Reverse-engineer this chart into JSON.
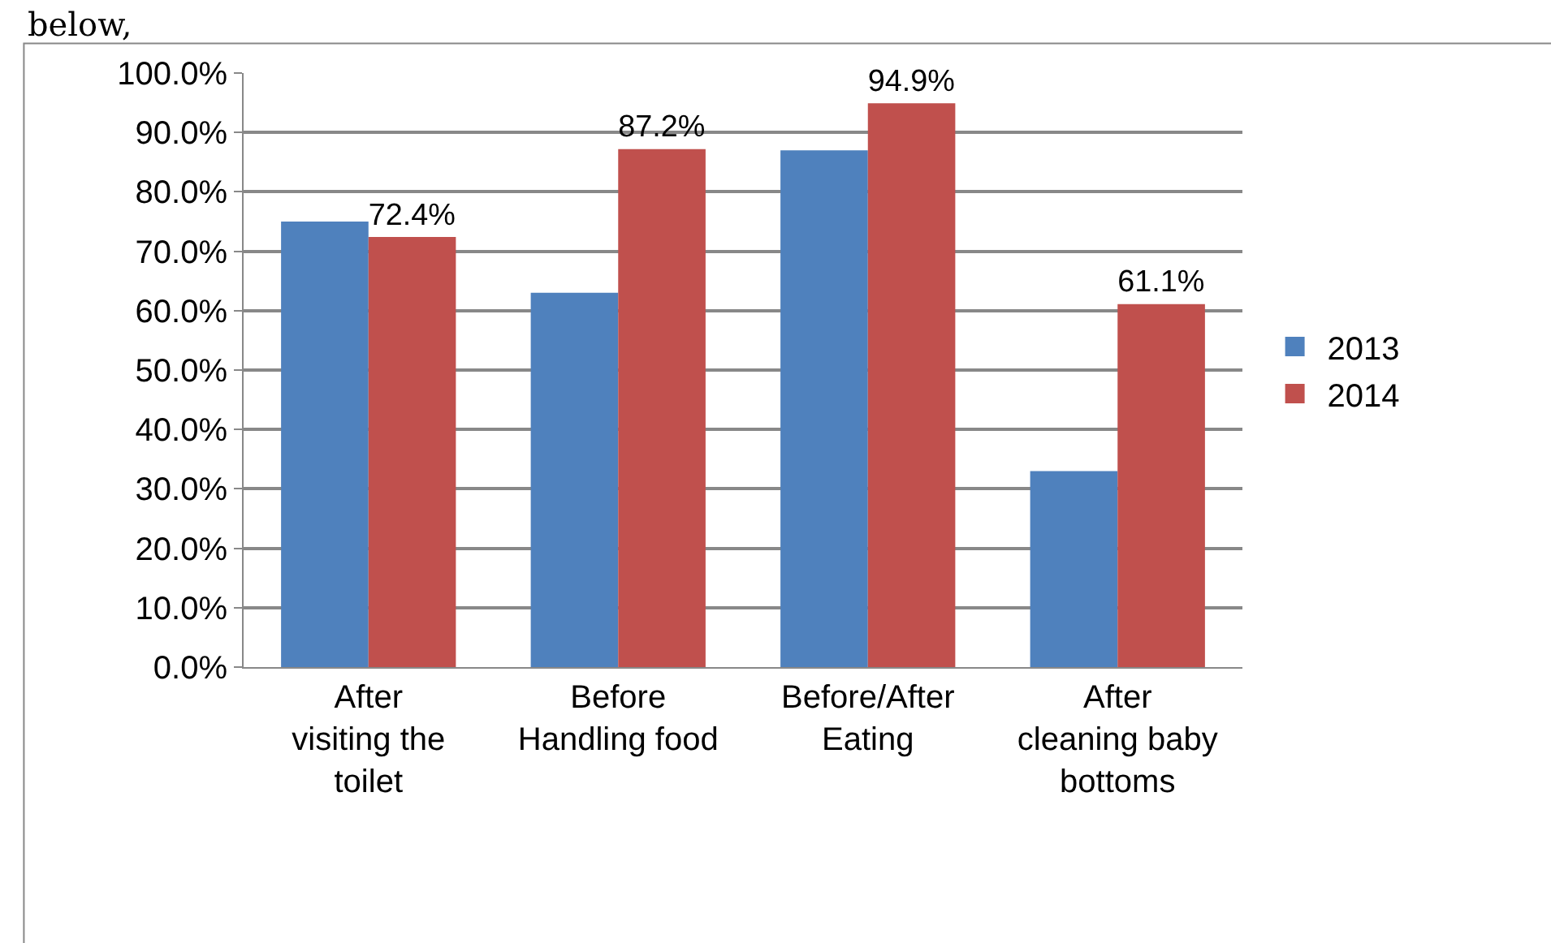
{
  "chart_data": {
    "type": "bar",
    "categories": [
      "After visiting the toilet",
      "Before Handling food",
      "Before/After Eating",
      "After cleaning baby bottoms"
    ],
    "series": [
      {
        "name": "2013",
        "color": "#4f81bd",
        "values": [
          75,
          63,
          87,
          33
        ]
      },
      {
        "name": "2014",
        "color": "#c0504d",
        "values": [
          72.4,
          87.2,
          94.9,
          61.1
        ],
        "value_labels": [
          "72.4%",
          "87.2%",
          "94.9%",
          "61.1%"
        ]
      }
    ],
    "ylim": [
      0,
      100
    ],
    "yticks": [
      {
        "value": 0,
        "label": "0.0%"
      },
      {
        "value": 10,
        "label": "10.0%"
      },
      {
        "value": 20,
        "label": "20.0%"
      },
      {
        "value": 30,
        "label": "30.0%"
      },
      {
        "value": 40,
        "label": "40.0%"
      },
      {
        "value": 50,
        "label": "50.0%"
      },
      {
        "value": 60,
        "label": "60.0%"
      },
      {
        "value": 70,
        "label": "70.0%"
      },
      {
        "value": 80,
        "label": "80.0%"
      },
      {
        "value": 90,
        "label": "90.0%"
      },
      {
        "value": 100,
        "label": "100.0%"
      }
    ],
    "grid": "y",
    "legend": "right",
    "annotations": [
      "below,"
    ]
  }
}
